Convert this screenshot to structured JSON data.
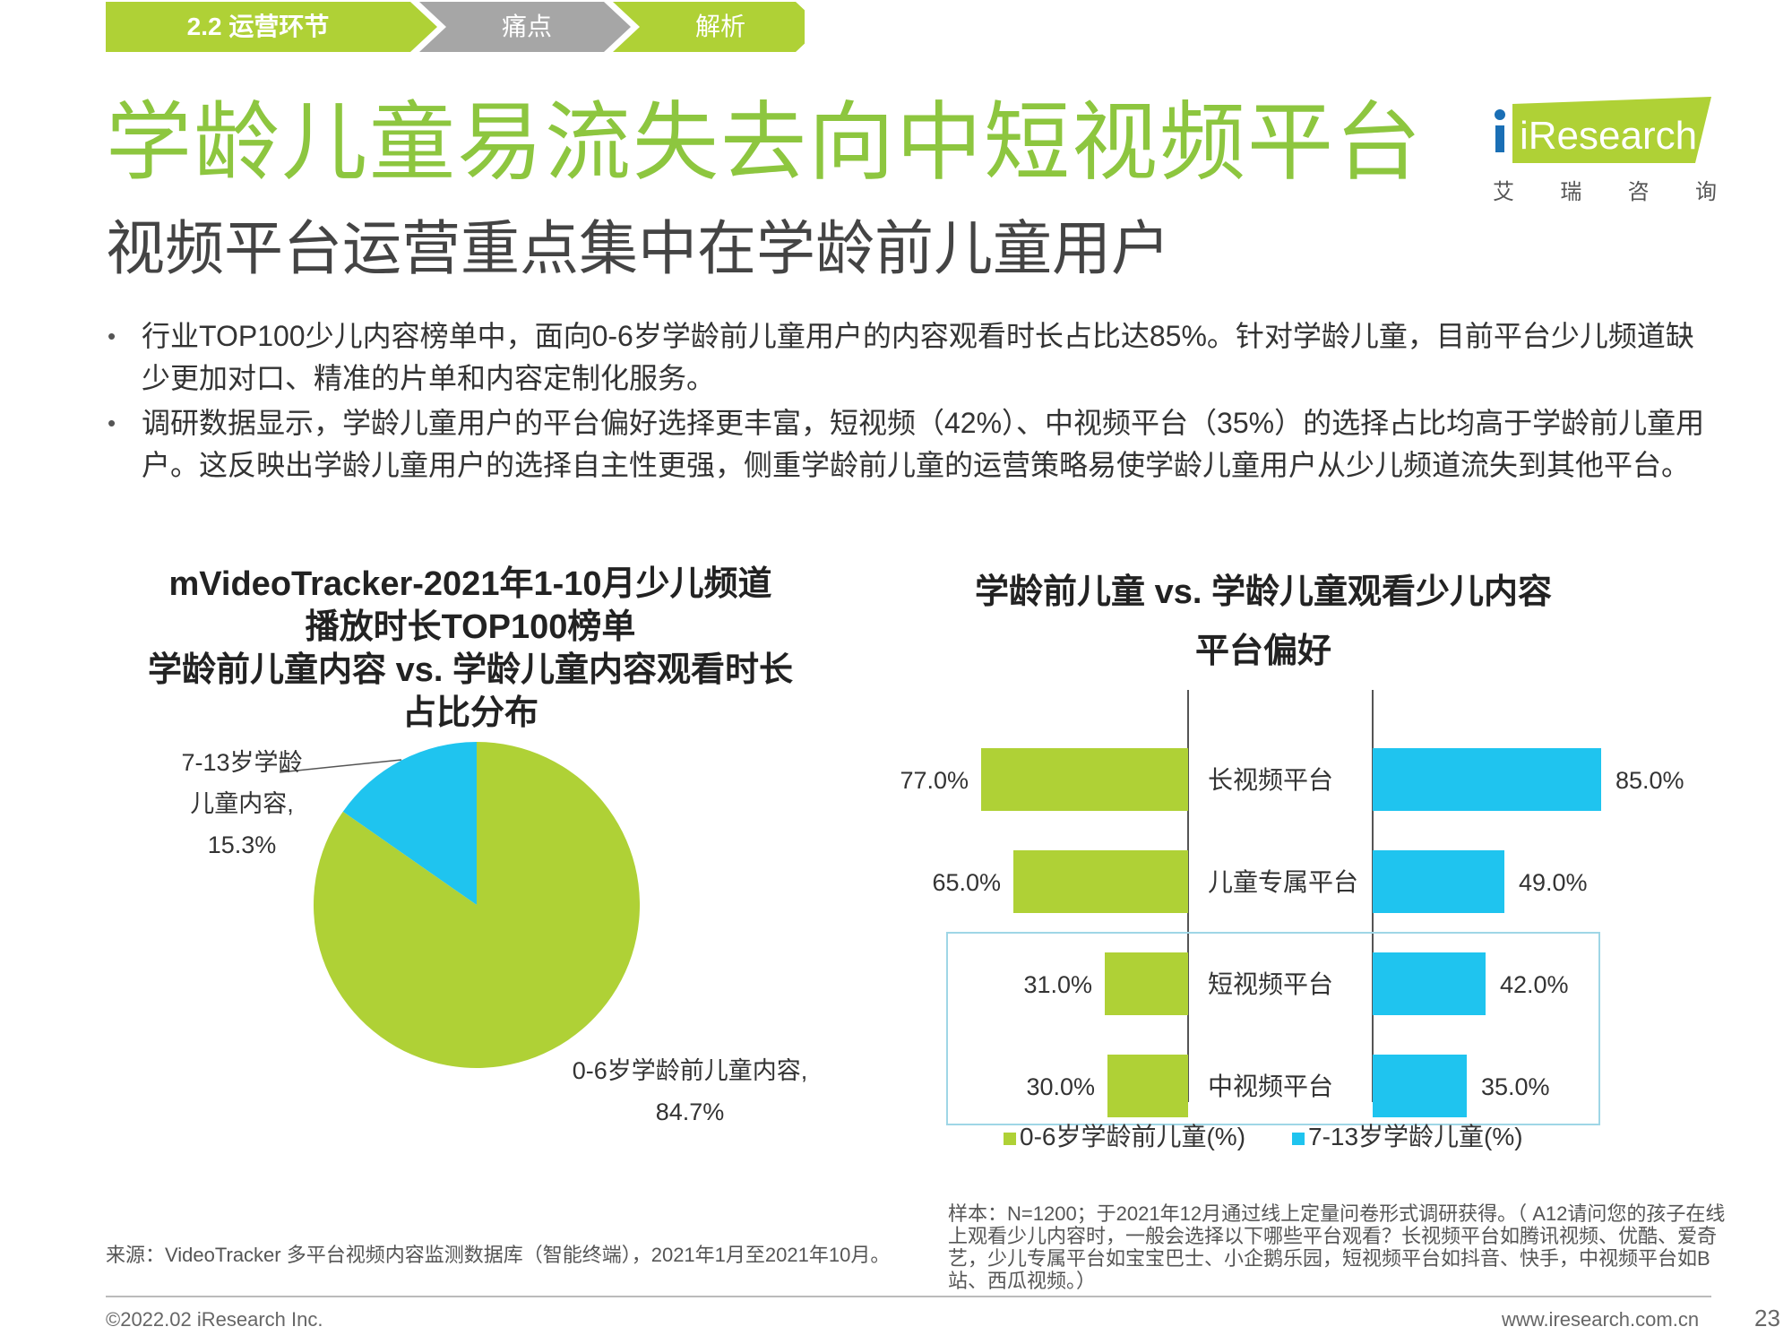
{
  "breadcrumb": {
    "items": [
      "2.2  运营环节",
      "痛点",
      "解析"
    ]
  },
  "page": {
    "title": "学龄儿童易流失去向中短视频平台",
    "subtitle": "视频平台运营重点集中在学龄前儿童用户"
  },
  "logo": {
    "brand": "iResearch",
    "cn": [
      "艾",
      "瑞",
      "咨",
      "询"
    ]
  },
  "bullets": [
    "行业TOP100少儿内容榜单中，面向0-6岁学龄前儿童用户的内容观看时长占比达85%。针对学龄儿童，目前平台少儿频道缺少更加对口、精准的片单和内容定制化服务。",
    "调研数据显示，学龄儿童用户的平台偏好选择更丰富，短视频（42%）、中视频平台（35%）的选择占比均高于学龄前儿童用户。这反映出学龄儿童用户的选择自主性更强，侧重学龄前儿童的运营策略易使学龄儿童用户从少儿频道流失到其他平台。"
  ],
  "colors": {
    "green": "#afd136",
    "blue": "#1fc4ef",
    "title_green": "#8dc63f",
    "highlight_border": "#9fd6e6"
  },
  "chart_data": [
    {
      "type": "pie",
      "title_lines": [
        "mVideoTracker-2021年1-10月少儿频道",
        "播放时长TOP100榜单",
        "学龄前儿童内容 vs. 学龄儿童内容观看时长",
        "占比分布"
      ],
      "slices": [
        {
          "label_lines": [
            "7-13岁学龄",
            "儿童内容,",
            "15.3%"
          ],
          "value": 15.3,
          "color": "#1fc4ef"
        },
        {
          "label_lines": [
            "0-6岁学龄前儿童内容,",
            "84.7%"
          ],
          "value": 84.7,
          "color": "#afd136"
        }
      ]
    },
    {
      "type": "bar",
      "orientation": "horizontal-butterfly",
      "title_lines": [
        "学龄前儿童 vs. 学龄儿童观看少儿内容",
        "平台偏好"
      ],
      "categories": [
        "长视频平台",
        "儿童专属平台",
        "短视频平台",
        "中视频平台"
      ],
      "series": [
        {
          "name": "0-6岁学龄前儿童(%)",
          "values": [
            77.0,
            65.0,
            31.0,
            30.0
          ],
          "labels": [
            "77.0%",
            "65.0%",
            "31.0%",
            "30.0%"
          ],
          "color": "#afd136"
        },
        {
          "name": "7-13岁学龄儿童(%)",
          "values": [
            85.0,
            49.0,
            42.0,
            35.0
          ],
          "labels": [
            "85.0%",
            "49.0%",
            "42.0%",
            "35.0%"
          ],
          "color": "#1fc4ef"
        }
      ],
      "highlighted_categories": [
        "短视频平台",
        "中视频平台"
      ],
      "xlim": [
        0,
        100
      ]
    }
  ],
  "source": "来源：VideoTracker 多平台视频内容监测数据库（智能终端），2021年1月至2021年10月。",
  "note": "样本：N=1200；于2021年12月通过线上定量问卷形式调研获得。（ A12请问您的孩子在线上观看少儿内容时，一般会选择以下哪些平台观看？长视频平台如腾讯视频、优酷、爱奇艺，少儿专属平台如宝宝巴士、小企鹅乐园，短视频平台如抖音、快手，中视频平台如B站、西瓜视频。）",
  "footer": {
    "copyright": "©2022.02 iResearch Inc.",
    "site": "www.iresearch.com.cn",
    "page_number": "23"
  }
}
